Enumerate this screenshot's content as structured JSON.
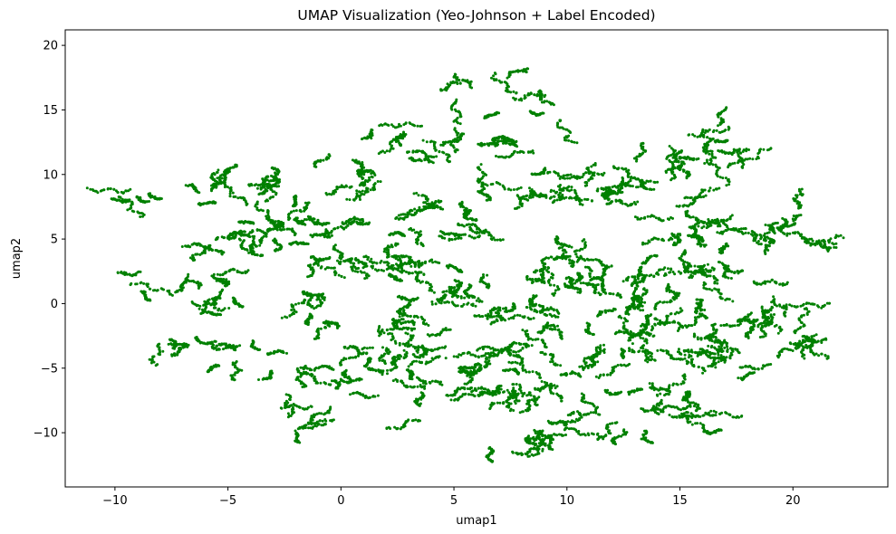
{
  "chart_data": {
    "type": "scatter",
    "title": "UMAP Visualization (Yeo-Johnson + Label Encoded)",
    "xlabel": "umap1",
    "ylabel": "umap2",
    "xlim": [
      -12.2,
      24.2
    ],
    "ylim": [
      -14.2,
      21.2
    ],
    "xticks": [
      -10,
      -5,
      0,
      5,
      10,
      15,
      20
    ],
    "xtick_labels": [
      "−10",
      "−5",
      "0",
      "5",
      "10",
      "15",
      "20"
    ],
    "yticks": [
      -10,
      -5,
      0,
      5,
      10,
      15,
      20
    ],
    "ytick_labels": [
      "−10",
      "−5",
      "0",
      "5",
      "10",
      "15",
      "20"
    ],
    "marker_color": "#008000",
    "grid": false,
    "legend": "none",
    "series": [
      {
        "description_clusters": [
          {
            "cx": -8.6,
            "cy": 8.3,
            "sx": 1.2,
            "sy": 0.9,
            "n": 160
          },
          {
            "cx": -5.6,
            "cy": 8.9,
            "sx": 1.0,
            "sy": 1.1,
            "n": 150
          },
          {
            "cx": -2.4,
            "cy": 9.3,
            "sx": 1.4,
            "sy": 0.8,
            "n": 170
          },
          {
            "cx": 0.9,
            "cy": 9.8,
            "sx": 1.3,
            "sy": 0.7,
            "n": 150
          },
          {
            "cx": -4.8,
            "cy": 5.0,
            "sx": 1.5,
            "sy": 1.4,
            "n": 320
          },
          {
            "cx": -0.8,
            "cy": 6.3,
            "sx": 1.3,
            "sy": 1.0,
            "n": 300
          },
          {
            "cx": 0.1,
            "cy": 3.0,
            "sx": 1.1,
            "sy": 0.9,
            "n": 200
          },
          {
            "cx": -8.3,
            "cy": 0.8,
            "sx": 1.4,
            "sy": 0.8,
            "n": 130
          },
          {
            "cx": -4.5,
            "cy": 1.2,
            "sx": 1.3,
            "sy": 1.1,
            "n": 170
          },
          {
            "cx": -1.4,
            "cy": -0.8,
            "sx": 1.1,
            "sy": 1.2,
            "n": 170
          },
          {
            "cx": -5.2,
            "cy": -3.4,
            "sx": 1.6,
            "sy": 1.4,
            "n": 320
          },
          {
            "cx": -1.2,
            "cy": -5.4,
            "sx": 1.1,
            "sy": 1.3,
            "n": 160
          },
          {
            "cx": -1.8,
            "cy": -8.6,
            "sx": 1.0,
            "sy": 0.8,
            "n": 120
          },
          {
            "cx": 1.6,
            "cy": -4.5,
            "sx": 1.0,
            "sy": 3.2,
            "n": 300
          },
          {
            "cx": 3.4,
            "cy": -3.8,
            "sx": 1.1,
            "sy": 3.4,
            "n": 380
          },
          {
            "cx": 3.2,
            "cy": 4.2,
            "sx": 1.4,
            "sy": 2.4,
            "n": 360
          },
          {
            "cx": 3.6,
            "cy": 12.8,
            "sx": 1.2,
            "sy": 1.2,
            "n": 200
          },
          {
            "cx": 6.8,
            "cy": 15.5,
            "sx": 1.7,
            "sy": 1.6,
            "n": 260
          },
          {
            "cx": 7.8,
            "cy": 12.6,
            "sx": 1.8,
            "sy": 0.8,
            "n": 160
          },
          {
            "cx": 5.8,
            "cy": 3.4,
            "sx": 0.9,
            "sy": 3.0,
            "n": 330
          },
          {
            "cx": 6.3,
            "cy": -5.2,
            "sx": 1.2,
            "sy": 3.2,
            "n": 360
          },
          {
            "cx": 8.2,
            "cy": -1.6,
            "sx": 1.1,
            "sy": 3.4,
            "n": 380
          },
          {
            "cx": 9.4,
            "cy": 8.6,
            "sx": 1.8,
            "sy": 1.4,
            "n": 300
          },
          {
            "cx": 9.8,
            "cy": 2.6,
            "sx": 1.3,
            "sy": 2.2,
            "n": 330
          },
          {
            "cx": 9.4,
            "cy": -7.6,
            "sx": 1.6,
            "sy": 2.0,
            "n": 340
          },
          {
            "cx": 8.2,
            "cy": -11.2,
            "sx": 1.0,
            "sy": 1.0,
            "n": 110
          },
          {
            "cx": 12.0,
            "cy": -4.4,
            "sx": 1.6,
            "sy": 2.4,
            "n": 420
          },
          {
            "cx": 13.2,
            "cy": 1.4,
            "sx": 1.6,
            "sy": 2.4,
            "n": 500
          },
          {
            "cx": 12.8,
            "cy": 9.6,
            "sx": 1.6,
            "sy": 1.4,
            "n": 300
          },
          {
            "cx": 16.2,
            "cy": 11.6,
            "sx": 1.4,
            "sy": 1.8,
            "n": 300
          },
          {
            "cx": 16.0,
            "cy": 4.6,
            "sx": 1.8,
            "sy": 2.0,
            "n": 500
          },
          {
            "cx": 16.0,
            "cy": -2.4,
            "sx": 1.8,
            "sy": 2.2,
            "n": 500
          },
          {
            "cx": 14.8,
            "cy": -8.4,
            "sx": 1.8,
            "sy": 1.3,
            "n": 260
          },
          {
            "cx": 12.2,
            "cy": -10.4,
            "sx": 1.2,
            "sy": 0.6,
            "n": 90
          },
          {
            "cx": 19.4,
            "cy": 5.8,
            "sx": 1.2,
            "sy": 1.3,
            "n": 200
          },
          {
            "cx": 19.2,
            "cy": 0.2,
            "sx": 0.9,
            "sy": 2.0,
            "n": 180
          },
          {
            "cx": 20.8,
            "cy": -2.6,
            "sx": 0.8,
            "sy": 1.6,
            "n": 130
          },
          {
            "cx": 21.6,
            "cy": 4.6,
            "sx": 0.6,
            "sy": 0.3,
            "n": 40
          }
        ]
      }
    ]
  }
}
